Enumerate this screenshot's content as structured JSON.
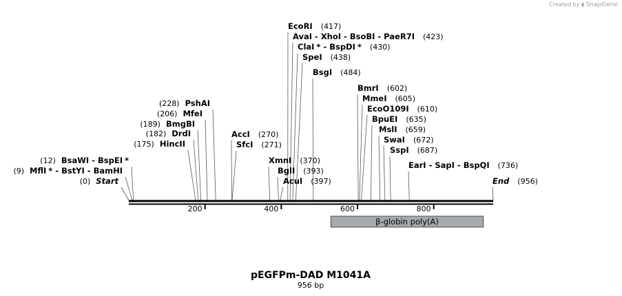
{
  "credit": {
    "prefix": "Created by",
    "brand": "SnapGene",
    "logo_icon": "snapgene-logo-icon"
  },
  "title": "pEGFPm-DAD M1041A",
  "length_label": "956 bp",
  "map": {
    "length_bp": 956,
    "tick_labels": [
      "200",
      "400",
      "600",
      "800"
    ],
    "feature": {
      "label": "β-globin poly(A)",
      "start": 530,
      "end": 930,
      "color": "#a6a9ad"
    }
  },
  "sites": [
    {
      "id": "start",
      "parts": [
        "Start"
      ],
      "pos": "(0)",
      "bp": 0,
      "side": "left",
      "style": "italic"
    },
    {
      "id": "mfli",
      "parts": [
        "MflI",
        "*",
        " - ",
        "BstYI",
        " - ",
        "BamHI"
      ],
      "pos": "(9)",
      "bp": 9,
      "side": "left"
    },
    {
      "id": "bsawi",
      "parts": [
        "BsaWI",
        " - ",
        "BspEI",
        "*"
      ],
      "pos": "(12)",
      "bp": 12,
      "side": "left"
    },
    {
      "id": "hincii",
      "parts": [
        "HincII"
      ],
      "pos": "(175)",
      "bp": 175,
      "side": "left"
    },
    {
      "id": "drdi",
      "parts": [
        "DrdI"
      ],
      "pos": "(182)",
      "bp": 182,
      "side": "left"
    },
    {
      "id": "bmgbi",
      "parts": [
        "BmgBI"
      ],
      "pos": "(189)",
      "bp": 189,
      "side": "left"
    },
    {
      "id": "mfei",
      "parts": [
        "MfeI"
      ],
      "pos": "(206)",
      "bp": 206,
      "side": "left"
    },
    {
      "id": "pshai",
      "parts": [
        "PshAI"
      ],
      "pos": "(228)",
      "bp": 228,
      "side": "left"
    },
    {
      "id": "acci",
      "parts": [
        "AccI"
      ],
      "pos": "(270)",
      "bp": 270,
      "side": "right"
    },
    {
      "id": "sfci",
      "parts": [
        "SfcI"
      ],
      "pos": "(271)",
      "bp": 271,
      "side": "right"
    },
    {
      "id": "xmni",
      "parts": [
        "XmnI"
      ],
      "pos": "(370)",
      "bp": 370,
      "side": "right"
    },
    {
      "id": "bgli",
      "parts": [
        "BglI"
      ],
      "pos": "(393)",
      "bp": 393,
      "side": "right"
    },
    {
      "id": "acui",
      "parts": [
        "AcuI"
      ],
      "pos": "(397)",
      "bp": 397,
      "side": "right"
    },
    {
      "id": "ecori",
      "parts": [
        "EcoRI"
      ],
      "pos": "(417)",
      "bp": 417,
      "side": "right"
    },
    {
      "id": "avai",
      "parts": [
        "AvaI",
        " - ",
        "XhoI",
        " - ",
        "BsoBI",
        " - ",
        "PaeR7I"
      ],
      "pos": "(423)",
      "bp": 423,
      "side": "right"
    },
    {
      "id": "clai",
      "parts": [
        "ClaI",
        "*",
        " - ",
        "BspDI",
        "*"
      ],
      "pos": "(430)",
      "bp": 430,
      "side": "right"
    },
    {
      "id": "spei",
      "parts": [
        "SpeI"
      ],
      "pos": "(438)",
      "bp": 438,
      "side": "right"
    },
    {
      "id": "bsgi",
      "parts": [
        "BsgI"
      ],
      "pos": "(484)",
      "bp": 484,
      "side": "right"
    },
    {
      "id": "bmri",
      "parts": [
        "BmrI"
      ],
      "pos": "(602)",
      "bp": 602,
      "side": "right"
    },
    {
      "id": "mmei",
      "parts": [
        "MmeI"
      ],
      "pos": "(605)",
      "bp": 605,
      "side": "right"
    },
    {
      "id": "ecoo109i",
      "parts": [
        "EcoO109I"
      ],
      "pos": "(610)",
      "bp": 610,
      "side": "right"
    },
    {
      "id": "bpuei",
      "parts": [
        "BpuEI"
      ],
      "pos": "(635)",
      "bp": 635,
      "side": "right"
    },
    {
      "id": "msli",
      "parts": [
        "MslI"
      ],
      "pos": "(659)",
      "bp": 659,
      "side": "right"
    },
    {
      "id": "swai",
      "parts": [
        "SwaI"
      ],
      "pos": "(672)",
      "bp": 672,
      "side": "right"
    },
    {
      "id": "sspi",
      "parts": [
        "SspI"
      ],
      "pos": "(687)",
      "bp": 687,
      "side": "right"
    },
    {
      "id": "eari",
      "parts": [
        "EarI",
        " - ",
        "SapI",
        " - ",
        "BspQI"
      ],
      "pos": "(736)",
      "bp": 736,
      "side": "right"
    },
    {
      "id": "end",
      "parts": [
        "End"
      ],
      "pos": "(956)",
      "bp": 956,
      "side": "right",
      "style": "italic"
    }
  ]
}
